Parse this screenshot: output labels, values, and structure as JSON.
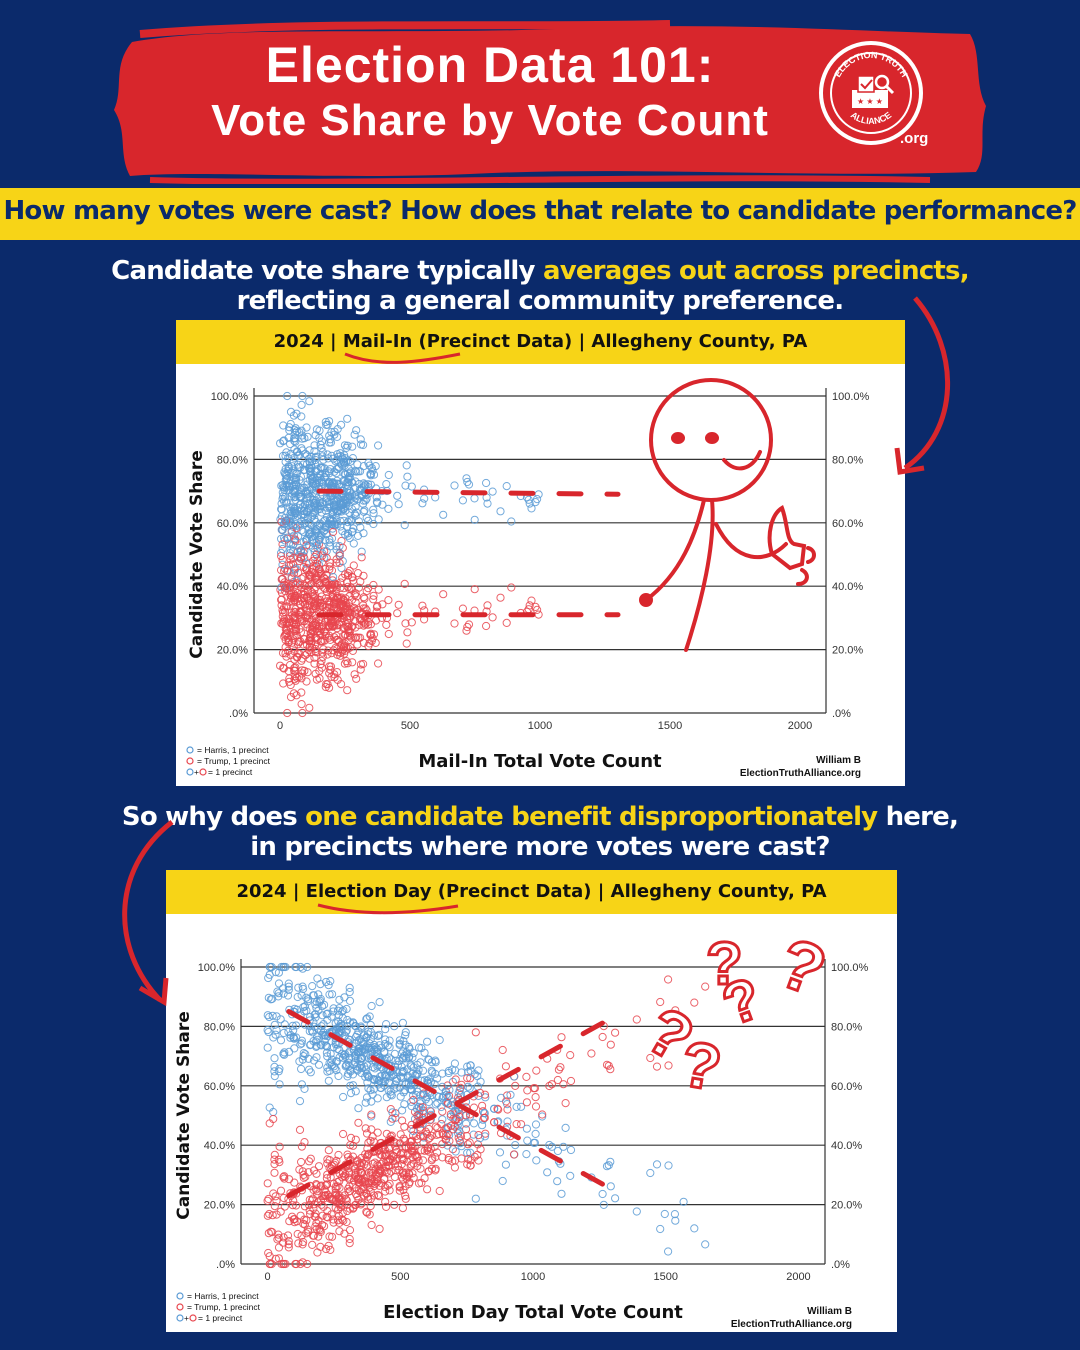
{
  "header": {
    "title_line1": "Election Data 101:",
    "title_line2": "Vote Share by Vote Count",
    "logo_top_text": "ELECTION TRUTH",
    "logo_bottom_text": "ALLIANCE",
    "logo_suffix": ".org",
    "brush_color": "#d8262c"
  },
  "banner": {
    "question": "How many votes were cast? How does that relate to candidate performance?"
  },
  "intro": {
    "line1_a": "Candidate vote share typically ",
    "line1_highlight": "averages out across precincts,",
    "line2": "reflecting a general community preference."
  },
  "middle": {
    "line1_a": "So why does ",
    "line1_highlight": "one candidate benefit disproportionately",
    "line1_b": " here,",
    "line2": "in precincts where more votes were cast?"
  },
  "legend": {
    "harris": "= Harris, 1 precinct",
    "trump": "= Trump, 1 precinct",
    "both": "= 1 precinct"
  },
  "credit": {
    "author": "William B",
    "site": "ElectionTruthAlliance.org"
  },
  "colors": {
    "harris": "#5b9bd5",
    "trump": "#e8474f",
    "accent_red": "#d8262c",
    "navy": "#0b2a6b",
    "yellow": "#f7d417"
  },
  "chart_data": [
    {
      "type": "scatter",
      "panel_title": "2024 | Mail-In (Precinct Data) | Allegheny County, PA",
      "panel_parts": [
        "2024",
        "Mail-In (Precinct Data)",
        "Allegheny County, PA"
      ],
      "xlabel": "Mail-In Total Vote Count",
      "ylabel": "Candidate Vote Share",
      "xlim": [
        -100,
        2100
      ],
      "ylim": [
        0,
        100
      ],
      "x_ticks": [
        "0",
        "500",
        "1000",
        "1500",
        "2000"
      ],
      "y_ticks": [
        ".0%",
        "20.0%",
        "40.0%",
        "60.0%",
        "80.0%",
        "100.0%"
      ],
      "series": [
        {
          "name": "Harris",
          "center_x": 150,
          "spread_x": 110,
          "max_x": 1000,
          "mean_share": 69,
          "spread_share": 13
        },
        {
          "name": "Trump",
          "center_x": 150,
          "spread_x": 110,
          "max_x": 1000,
          "mean_share": 31,
          "spread_share": 13
        }
      ],
      "trend_lines": [
        {
          "name": "Harris",
          "x": [
            150,
            1300
          ],
          "y": [
            70,
            69
          ]
        },
        {
          "name": "Trump",
          "x": [
            150,
            1300
          ],
          "y": [
            31,
            31
          ]
        }
      ]
    },
    {
      "type": "scatter",
      "panel_title": "2024 | Election Day (Precinct Data) | Allegheny County, PA",
      "panel_parts": [
        "2024",
        "Election Day (Precinct Data)",
        "Allegheny County, PA"
      ],
      "xlabel": "Election Day Total Vote Count",
      "ylabel": "Candidate Vote Share",
      "xlim": [
        -100,
        2100
      ],
      "ylim": [
        0,
        100
      ],
      "x_ticks": [
        "0",
        "500",
        "1000",
        "1500",
        "2000"
      ],
      "y_ticks": [
        ".0%",
        "20.0%",
        "40.0%",
        "60.0%",
        "80.0%",
        "100.0%"
      ],
      "series": [
        {
          "name": "Harris",
          "center_x": 380,
          "spread_x": 230,
          "max_x": 1650,
          "mean_share_at_0": 88,
          "slope_per_1000": -48,
          "spread_share": 8
        },
        {
          "name": "Trump",
          "center_x": 380,
          "spread_x": 230,
          "max_x": 1650,
          "mean_share_at_0": 12,
          "slope_per_1000": 48,
          "spread_share": 8
        }
      ],
      "trend_lines": [
        {
          "name": "Harris",
          "x": [
            80,
            1280
          ],
          "y": [
            85,
            26
          ]
        },
        {
          "name": "Trump",
          "x": [
            80,
            1300
          ],
          "y": [
            23,
            83
          ]
        }
      ]
    }
  ]
}
